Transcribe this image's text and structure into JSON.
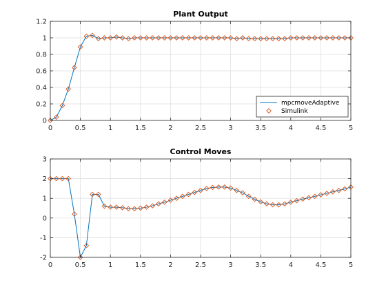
{
  "colors": {
    "line": "#0072BD",
    "marker": "#D95319",
    "grid": "#dcdcdc",
    "axis": "#262626"
  },
  "chart_data": [
    {
      "type": "line",
      "title": "Plant Output",
      "xlim": [
        0,
        5
      ],
      "ylim": [
        0,
        1.2
      ],
      "xticks": [
        0,
        0.5,
        1,
        1.5,
        2,
        2.5,
        3,
        3.5,
        4,
        4.5,
        5
      ],
      "xticklabels": [
        "0",
        "0.5",
        "1",
        "1.5",
        "2",
        "2.5",
        "3",
        "3.5",
        "4",
        "4.5",
        "5"
      ],
      "yticks": [
        0,
        0.2,
        0.4,
        0.6,
        0.8,
        1,
        1.2
      ],
      "yticklabels": [
        "0",
        "0.2",
        "0.4",
        "0.6",
        "0.8",
        "1",
        "1.2"
      ],
      "grid": true,
      "legend_position": "bottom-right",
      "x": [
        0,
        0.1,
        0.2,
        0.3,
        0.4,
        0.5,
        0.6,
        0.7,
        0.8,
        0.9,
        1.0,
        1.1,
        1.2,
        1.3,
        1.4,
        1.5,
        1.6,
        1.7,
        1.8,
        1.9,
        2.0,
        2.1,
        2.2,
        2.3,
        2.4,
        2.5,
        2.6,
        2.7,
        2.8,
        2.9,
        3.0,
        3.1,
        3.2,
        3.3,
        3.4,
        3.5,
        3.6,
        3.7,
        3.8,
        3.9,
        4.0,
        4.1,
        4.2,
        4.3,
        4.4,
        4.5,
        4.6,
        4.7,
        4.8,
        4.9,
        5.0
      ],
      "series": [
        {
          "name": "mpcmoveAdaptive",
          "style": "line",
          "values": [
            0,
            0.04,
            0.18,
            0.38,
            0.64,
            0.89,
            1.02,
            1.03,
            0.99,
            1.0,
            1.0,
            1.01,
            1.0,
            0.99,
            1.0,
            1.0,
            1.0,
            1.0,
            1.0,
            1.0,
            1.0,
            1.0,
            1.0,
            1.0,
            1.0,
            1.0,
            1.0,
            1.0,
            1.0,
            1.0,
            1.0,
            0.99,
            1.0,
            0.99,
            0.99,
            0.99,
            0.99,
            0.99,
            0.99,
            0.99,
            1.0,
            1.0,
            1.0,
            1.0,
            1.0,
            1.0,
            1.0,
            1.0,
            1.0,
            1.0,
            1.0
          ]
        },
        {
          "name": "Simulink",
          "style": "marker",
          "values": [
            0,
            0.04,
            0.18,
            0.38,
            0.64,
            0.89,
            1.02,
            1.03,
            0.99,
            1.0,
            1.0,
            1.01,
            1.0,
            0.99,
            1.0,
            1.0,
            1.0,
            1.0,
            1.0,
            1.0,
            1.0,
            1.0,
            1.0,
            1.0,
            1.0,
            1.0,
            1.0,
            1.0,
            1.0,
            1.0,
            1.0,
            0.99,
            1.0,
            0.99,
            0.99,
            0.99,
            0.99,
            0.99,
            0.99,
            0.99,
            1.0,
            1.0,
            1.0,
            1.0,
            1.0,
            1.0,
            1.0,
            1.0,
            1.0,
            1.0,
            1.0
          ]
        }
      ]
    },
    {
      "type": "line",
      "title": "Control Moves",
      "xlim": [
        0,
        5
      ],
      "ylim": [
        -2,
        3
      ],
      "xticks": [
        0,
        0.5,
        1,
        1.5,
        2,
        2.5,
        3,
        3.5,
        4,
        4.5,
        5
      ],
      "xticklabels": [
        "0",
        "0.5",
        "1",
        "1.5",
        "2",
        "2.5",
        "3",
        "3.5",
        "4",
        "4.5",
        "5"
      ],
      "yticks": [
        -2,
        -1,
        0,
        1,
        2,
        3
      ],
      "yticklabels": [
        "-2",
        "-1",
        "0",
        "1",
        "2",
        "3"
      ],
      "grid": true,
      "x": [
        0,
        0.1,
        0.2,
        0.3,
        0.4,
        0.5,
        0.6,
        0.7,
        0.8,
        0.9,
        1.0,
        1.1,
        1.2,
        1.3,
        1.4,
        1.5,
        1.6,
        1.7,
        1.8,
        1.9,
        2.0,
        2.1,
        2.2,
        2.3,
        2.4,
        2.5,
        2.6,
        2.7,
        2.8,
        2.9,
        3.0,
        3.1,
        3.2,
        3.3,
        3.4,
        3.5,
        3.6,
        3.7,
        3.8,
        3.9,
        4.0,
        4.1,
        4.2,
        4.3,
        4.4,
        4.5,
        4.6,
        4.7,
        4.8,
        4.9,
        5.0
      ],
      "series": [
        {
          "name": "mpcmoveAdaptive",
          "style": "line",
          "values": [
            2.0,
            2.0,
            2.0,
            2.0,
            0.2,
            -2.0,
            -1.4,
            1.2,
            1.2,
            0.6,
            0.55,
            0.55,
            0.52,
            0.47,
            0.47,
            0.5,
            0.55,
            0.62,
            0.72,
            0.8,
            0.9,
            1.0,
            1.1,
            1.2,
            1.3,
            1.4,
            1.5,
            1.55,
            1.57,
            1.57,
            1.52,
            1.4,
            1.28,
            1.1,
            0.95,
            0.82,
            0.72,
            0.67,
            0.67,
            0.72,
            0.8,
            0.88,
            0.96,
            1.03,
            1.1,
            1.18,
            1.25,
            1.33,
            1.4,
            1.48,
            1.57
          ]
        },
        {
          "name": "Simulink",
          "style": "marker",
          "values": [
            2.0,
            2.0,
            2.0,
            2.0,
            0.2,
            -2.0,
            -1.4,
            1.2,
            1.2,
            0.6,
            0.55,
            0.55,
            0.52,
            0.47,
            0.47,
            0.5,
            0.55,
            0.62,
            0.72,
            0.8,
            0.9,
            1.0,
            1.1,
            1.2,
            1.3,
            1.4,
            1.5,
            1.55,
            1.57,
            1.57,
            1.52,
            1.4,
            1.28,
            1.1,
            0.95,
            0.82,
            0.72,
            0.67,
            0.67,
            0.72,
            0.8,
            0.88,
            0.96,
            1.03,
            1.1,
            1.18,
            1.25,
            1.33,
            1.4,
            1.48,
            1.57
          ]
        }
      ]
    }
  ]
}
